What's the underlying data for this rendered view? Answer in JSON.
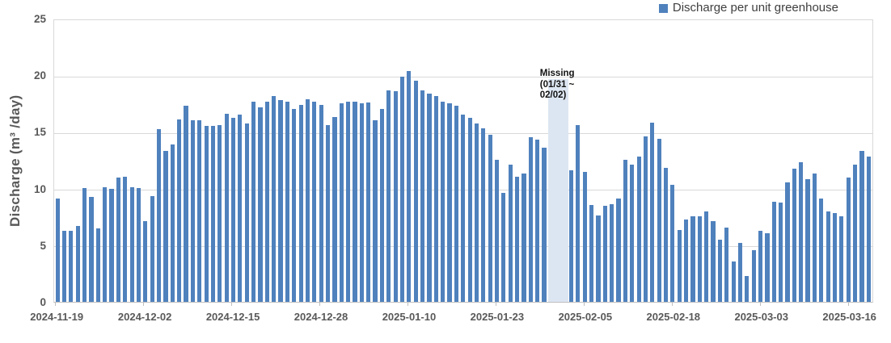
{
  "legend": {
    "label": "Discharge per unit greenhouse",
    "swatch_color": "#4f81bd"
  },
  "y_axis": {
    "title": "Discharge (m³ /day)",
    "ticks": [
      0,
      5,
      10,
      15,
      20,
      25
    ],
    "max": 25
  },
  "x_axis": {
    "tick_labels": [
      "2024-11-19",
      "2024-12-02",
      "2024-12-15",
      "2024-12-28",
      "2025-01-10",
      "2025-01-23",
      "2025-02-05",
      "2025-02-18",
      "2025-03-03",
      "2025-03-16"
    ],
    "tick_indices": [
      0,
      13,
      26,
      39,
      52,
      65,
      78,
      91,
      104,
      117
    ]
  },
  "annotation": {
    "line1": "Missing",
    "line2": "(01/31 ~",
    "line3": "02/02)"
  },
  "missing_region": {
    "label": "Missing (01/31 ~ 02/02)",
    "start_index": 73,
    "end_index": 75,
    "band_top_value": 19.8,
    "color": "#dce6f2"
  },
  "colors": {
    "bar": "#4f81bd",
    "band": "#dce6f2",
    "gridline": "#d9d9d9",
    "axis_line": "#bfbfbf",
    "tick_text": "#595959",
    "legend_text": "#404040"
  },
  "chart_data": {
    "type": "bar",
    "title": "",
    "xlabel": "",
    "ylabel": "Discharge (m³ /day)",
    "ylim": [
      0,
      25
    ],
    "grid": true,
    "legend_position": "top-right",
    "series_name": "Discharge per unit greenhouse",
    "x": [
      "2024-11-19",
      "2024-11-20",
      "2024-11-21",
      "2024-11-22",
      "2024-11-23",
      "2024-11-24",
      "2024-11-25",
      "2024-11-26",
      "2024-11-27",
      "2024-11-28",
      "2024-11-29",
      "2024-11-30",
      "2024-12-01",
      "2024-12-02",
      "2024-12-03",
      "2024-12-04",
      "2024-12-05",
      "2024-12-06",
      "2024-12-07",
      "2024-12-08",
      "2024-12-09",
      "2024-12-10",
      "2024-12-11",
      "2024-12-12",
      "2024-12-13",
      "2024-12-14",
      "2024-12-15",
      "2024-12-16",
      "2024-12-17",
      "2024-12-18",
      "2024-12-19",
      "2024-12-20",
      "2024-12-21",
      "2024-12-22",
      "2024-12-23",
      "2024-12-24",
      "2024-12-25",
      "2024-12-26",
      "2024-12-27",
      "2024-12-28",
      "2024-12-29",
      "2024-12-30",
      "2024-12-31",
      "2025-01-01",
      "2025-01-02",
      "2025-01-03",
      "2025-01-04",
      "2025-01-05",
      "2025-01-06",
      "2025-01-07",
      "2025-01-08",
      "2025-01-09",
      "2025-01-10",
      "2025-01-11",
      "2025-01-12",
      "2025-01-13",
      "2025-01-14",
      "2025-01-15",
      "2025-01-16",
      "2025-01-17",
      "2025-01-18",
      "2025-01-19",
      "2025-01-20",
      "2025-01-21",
      "2025-01-22",
      "2025-01-23",
      "2025-01-24",
      "2025-01-25",
      "2025-01-26",
      "2025-01-27",
      "2025-01-28",
      "2025-01-29",
      "2025-01-30",
      "2025-01-31",
      "2025-02-01",
      "2025-02-02",
      "2025-02-03",
      "2025-02-04",
      "2025-02-05",
      "2025-02-06",
      "2025-02-07",
      "2025-02-08",
      "2025-02-09",
      "2025-02-10",
      "2025-02-11",
      "2025-02-12",
      "2025-02-13",
      "2025-02-14",
      "2025-02-15",
      "2025-02-16",
      "2025-02-17",
      "2025-02-18",
      "2025-02-19",
      "2025-02-20",
      "2025-02-21",
      "2025-02-22",
      "2025-02-23",
      "2025-02-24",
      "2025-02-25",
      "2025-02-26",
      "2025-02-27",
      "2025-02-28",
      "2025-03-01",
      "2025-03-02",
      "2025-03-03",
      "2025-03-04",
      "2025-03-05",
      "2025-03-06",
      "2025-03-07",
      "2025-03-08",
      "2025-03-09",
      "2025-03-10",
      "2025-03-11",
      "2025-03-12",
      "2025-03-13",
      "2025-03-14",
      "2025-03-15",
      "2025-03-16",
      "2025-03-17",
      "2025-03-18",
      "2025-03-19"
    ],
    "values": [
      9.2,
      6.3,
      6.3,
      6.7,
      10.1,
      9.3,
      6.5,
      10.2,
      10.0,
      11.0,
      11.1,
      10.2,
      10.1,
      7.2,
      9.4,
      15.3,
      13.4,
      14.0,
      16.2,
      17.4,
      16.1,
      16.1,
      15.6,
      15.6,
      15.7,
      16.7,
      16.3,
      16.6,
      15.8,
      17.8,
      17.3,
      17.8,
      18.3,
      17.9,
      17.8,
      17.1,
      17.5,
      18.0,
      17.8,
      17.5,
      15.7,
      16.4,
      17.6,
      17.8,
      17.8,
      17.6,
      17.7,
      16.1,
      17.1,
      18.8,
      18.7,
      20.0,
      20.5,
      19.6,
      18.8,
      18.5,
      18.3,
      17.8,
      17.6,
      17.4,
      16.6,
      16.3,
      15.8,
      15.4,
      14.8,
      12.6,
      9.7,
      12.2,
      11.1,
      11.4,
      14.6,
      14.4,
      13.7,
      null,
      null,
      null,
      11.7,
      15.7,
      11.5,
      8.6,
      7.7,
      8.5,
      8.7,
      9.2,
      12.6,
      12.2,
      12.9,
      14.7,
      15.9,
      14.5,
      11.9,
      10.4,
      6.4,
      7.3,
      7.6,
      7.6,
      8.0,
      7.2,
      5.5,
      6.6,
      3.6,
      5.2,
      2.3,
      4.6,
      6.3,
      6.1,
      8.9,
      8.8,
      10.6,
      11.8,
      12.4,
      10.9,
      11.4,
      9.2,
      8.0,
      7.9,
      7.6,
      11.0,
      12.2,
      13.4,
      12.9
    ]
  }
}
